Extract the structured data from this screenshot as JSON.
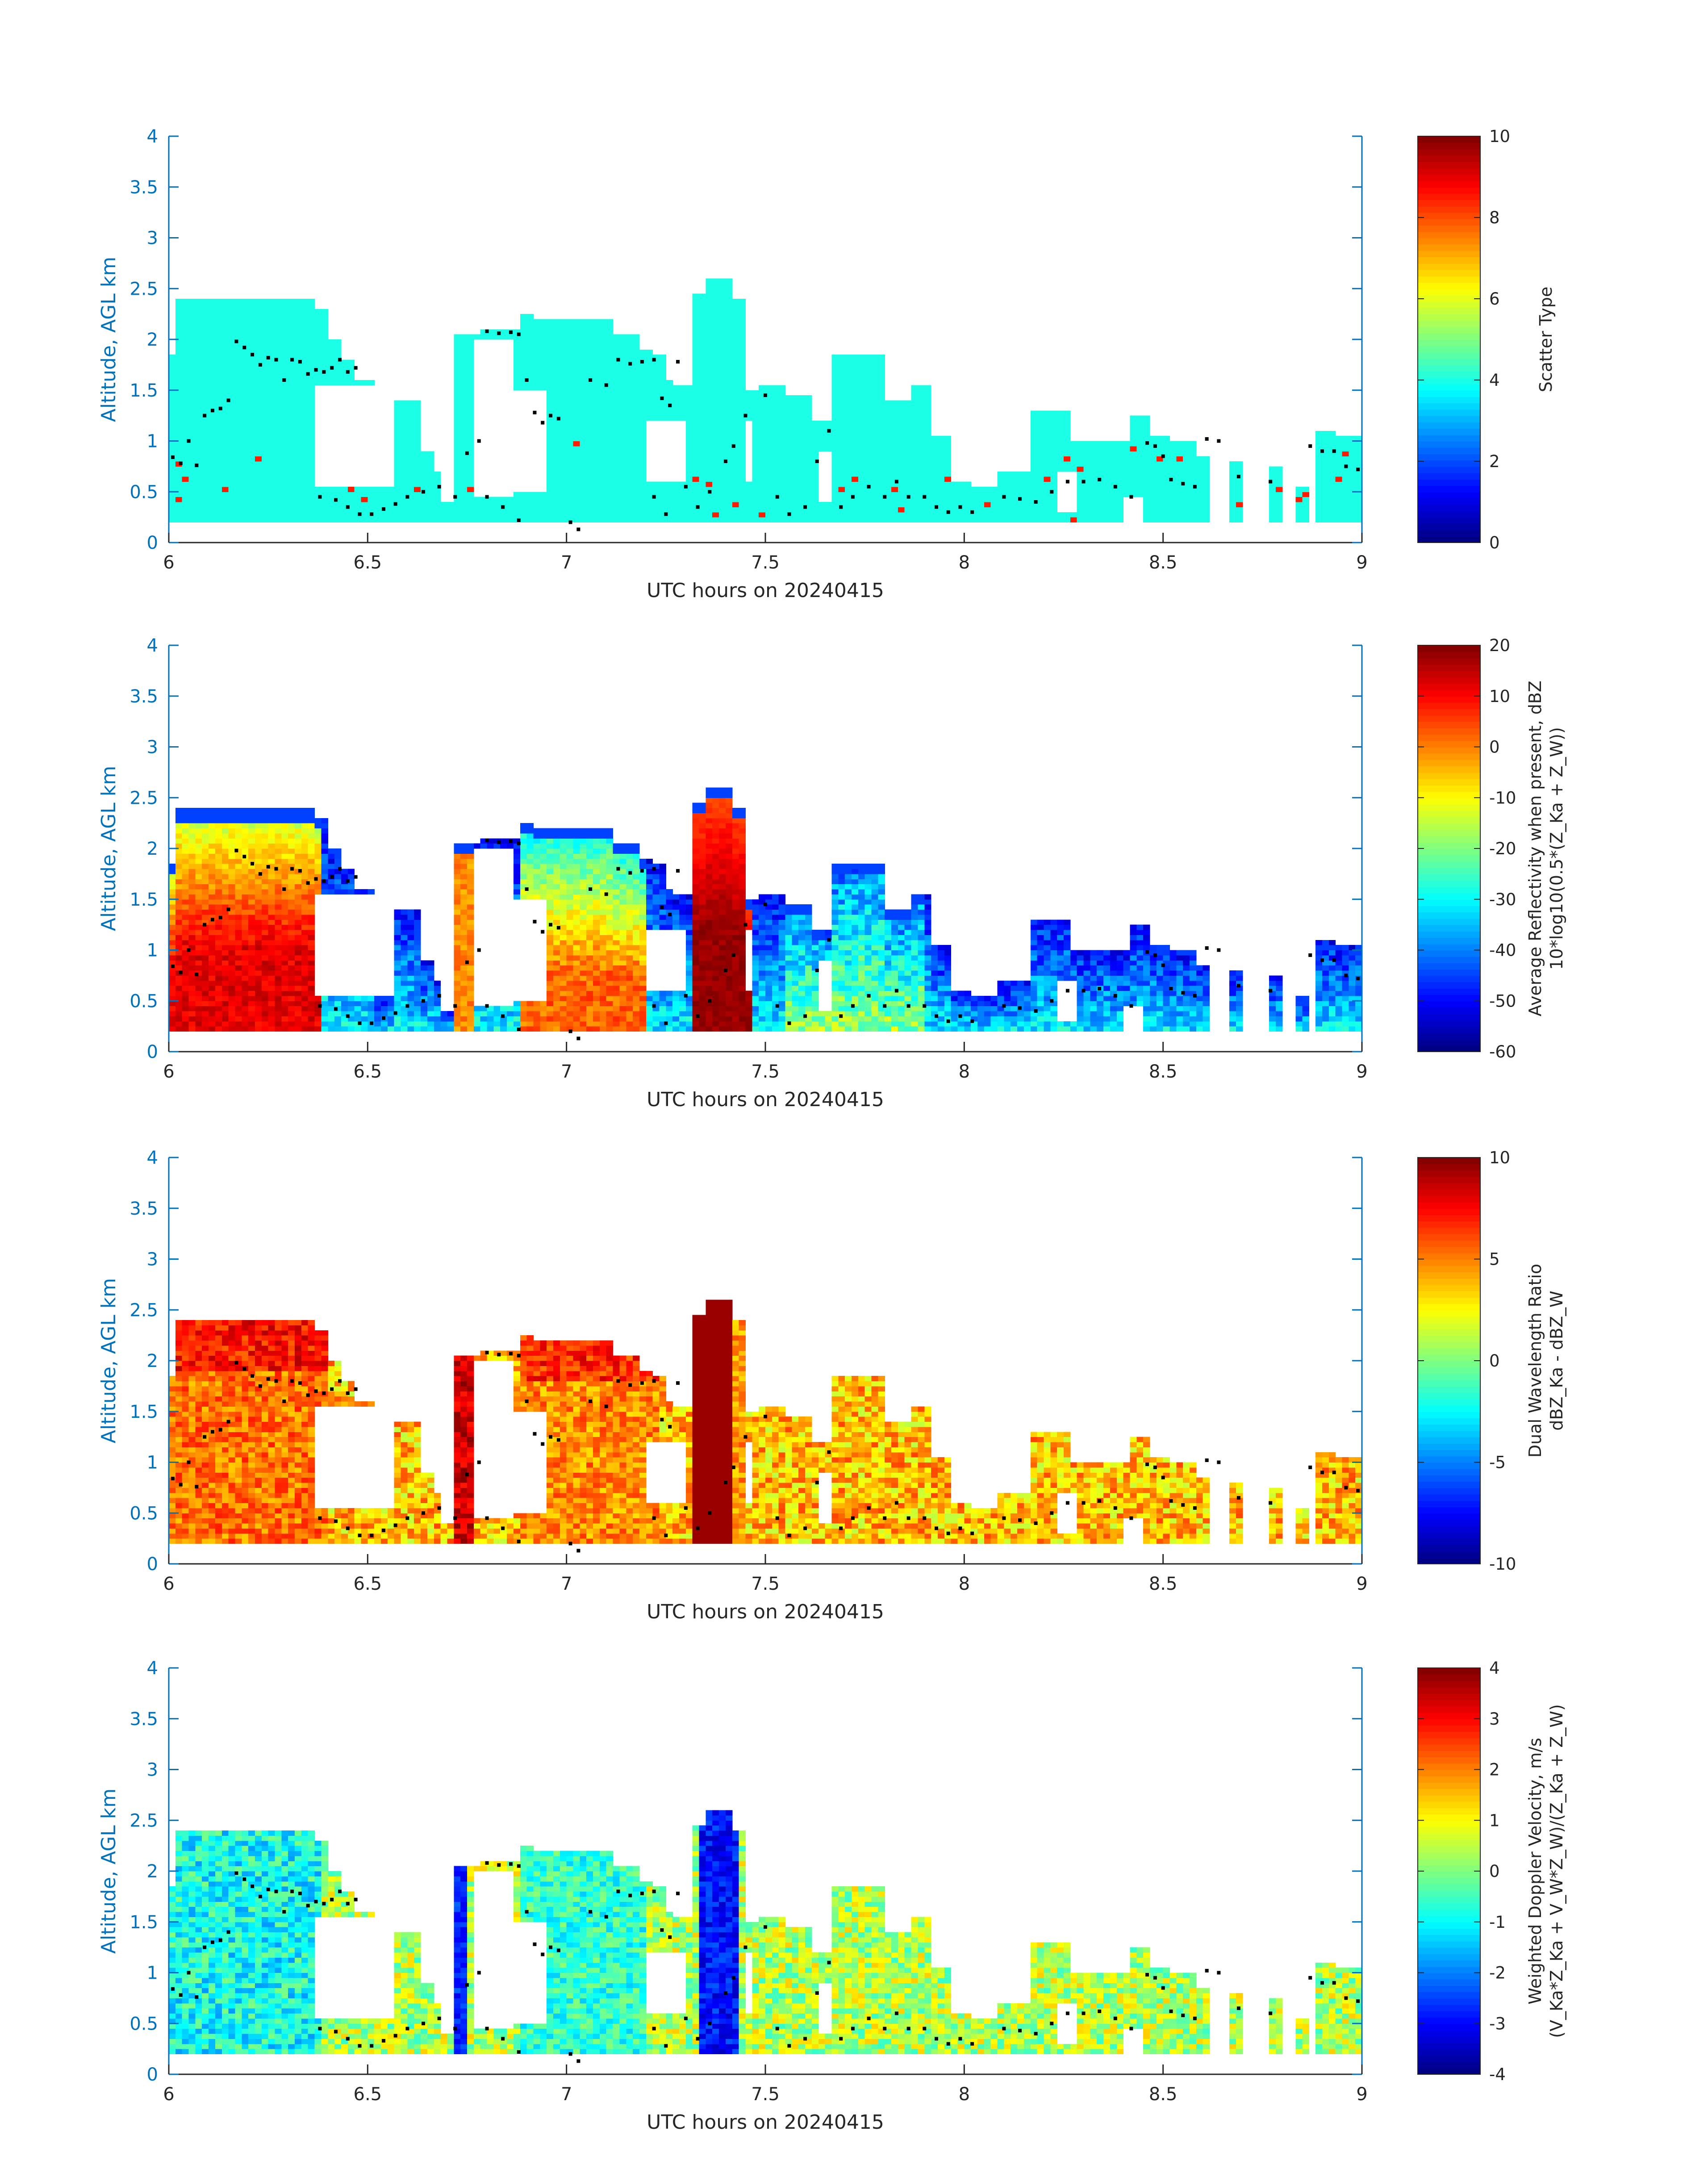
{
  "figure": {
    "x_ticks": [
      "6",
      "6.5",
      "7",
      "7.5",
      "8",
      "8.5",
      "9"
    ],
    "y_ticks": [
      "0",
      "0.5",
      "1",
      "1.5",
      "2",
      "2.5",
      "3",
      "3.5",
      "4"
    ],
    "y_label": "Altitude, AGL km",
    "x_label": "UTC hours on 20240415",
    "colors": {
      "axis_y": "#0072BD",
      "axis_x": "#262626",
      "dots": "#000000"
    },
    "colormap": "jet"
  },
  "chart_data": [
    {
      "type": "heatmap",
      "panel": "scatter-type",
      "xlabel": "UTC hours on 20240415",
      "ylabel": "Altitude, AGL km",
      "xlim": [
        6,
        9
      ],
      "ylim": [
        0,
        4
      ],
      "x_ticks": [
        6,
        6.5,
        7,
        7.5,
        8,
        8.5,
        9
      ],
      "y_ticks": [
        0,
        0.5,
        1,
        1.5,
        2,
        2.5,
        3,
        3.5,
        4
      ],
      "colorbar": {
        "label_lines": [
          "Scatter Type"
        ],
        "ticks": [
          "0",
          "2",
          "4",
          "6",
          "8",
          "10"
        ],
        "range": [
          0,
          10
        ]
      },
      "dominant_value": 4,
      "secondary_value": 8.5,
      "note": "cloud regions mostly value ~4 with scattered columns ~8.5; black dots mark cloud base"
    },
    {
      "type": "heatmap",
      "panel": "reflectivity",
      "xlabel": "UTC hours on 20240415",
      "ylabel": "Altitude, AGL km",
      "xlim": [
        6,
        9
      ],
      "ylim": [
        0,
        4
      ],
      "colorbar": {
        "label_lines": [
          "Average Reflectivity when present, dBZ",
          "10*log10(0.5*(Z_Ka + Z_W))"
        ],
        "ticks": [
          "-60",
          "-50",
          "-40",
          "-30",
          "-20",
          "-10",
          "0",
          "10",
          "20"
        ],
        "range": [
          -60,
          20
        ]
      },
      "peak_value": 15,
      "peak_time": 7.38
    },
    {
      "type": "heatmap",
      "panel": "dual-wavelength-ratio",
      "xlabel": "UTC hours on 20240415",
      "ylabel": "Altitude, AGL km",
      "xlim": [
        6,
        9
      ],
      "ylim": [
        0,
        4
      ],
      "colorbar": {
        "label_lines": [
          "Dual Wavelength Ratio",
          "dBZ_Ka - dBZ_W"
        ],
        "ticks": [
          "-10",
          "-5",
          "0",
          "5",
          "10"
        ],
        "range": [
          -10,
          10
        ]
      },
      "peak_value": 10,
      "peak_time": 7.36
    },
    {
      "type": "heatmap",
      "panel": "doppler-velocity",
      "xlabel": "UTC hours on 20240415",
      "ylabel": "Altitude, AGL km",
      "xlim": [
        6,
        9
      ],
      "ylim": [
        0,
        4
      ],
      "colorbar": {
        "label_lines": [
          "Weighted Doppler Velocity, m/s",
          "(V_Ka*Z_Ka + V_W*Z_W)/(Z_Ka + Z_W)"
        ],
        "ticks": [
          "-4",
          "-3",
          "-2",
          "-1",
          "0",
          "1",
          "2",
          "3",
          "4"
        ],
        "range": [
          -4,
          4
        ]
      },
      "min_value": -3.5,
      "min_time": 7.38
    }
  ],
  "cloud_base_dots": [
    [
      6.01,
      0.84
    ],
    [
      6.03,
      0.78
    ],
    [
      6.05,
      1.0
    ],
    [
      6.07,
      0.76
    ],
    [
      6.09,
      1.25
    ],
    [
      6.11,
      1.3
    ],
    [
      6.13,
      1.32
    ],
    [
      6.15,
      1.4
    ],
    [
      6.17,
      1.98
    ],
    [
      6.19,
      1.92
    ],
    [
      6.21,
      1.85
    ],
    [
      6.23,
      1.75
    ],
    [
      6.25,
      1.82
    ],
    [
      6.27,
      1.8
    ],
    [
      6.29,
      1.6
    ],
    [
      6.31,
      1.8
    ],
    [
      6.33,
      1.78
    ],
    [
      6.35,
      1.66
    ],
    [
      6.37,
      1.7
    ],
    [
      6.39,
      1.68
    ],
    [
      6.41,
      1.72
    ],
    [
      6.43,
      1.8
    ],
    [
      6.45,
      1.68
    ],
    [
      6.47,
      1.72
    ],
    [
      6.38,
      0.45
    ],
    [
      6.42,
      0.42
    ],
    [
      6.45,
      0.35
    ],
    [
      6.48,
      0.28
    ],
    [
      6.51,
      0.28
    ],
    [
      6.54,
      0.33
    ],
    [
      6.57,
      0.38
    ],
    [
      6.6,
      0.45
    ],
    [
      6.64,
      0.5
    ],
    [
      6.68,
      0.55
    ],
    [
      6.72,
      0.45
    ],
    [
      6.75,
      0.88
    ],
    [
      6.78,
      1.0
    ],
    [
      6.8,
      2.08
    ],
    [
      6.83,
      2.06
    ],
    [
      6.86,
      2.07
    ],
    [
      6.88,
      2.05
    ],
    [
      6.9,
      1.6
    ],
    [
      6.92,
      1.28
    ],
    [
      6.94,
      1.18
    ],
    [
      6.96,
      1.25
    ],
    [
      6.98,
      1.22
    ],
    [
      6.8,
      0.45
    ],
    [
      6.84,
      0.35
    ],
    [
      6.88,
      0.22
    ],
    [
      7.01,
      0.2
    ],
    [
      7.03,
      0.13
    ],
    [
      7.06,
      1.6
    ],
    [
      7.1,
      1.55
    ],
    [
      7.13,
      1.8
    ],
    [
      7.16,
      1.76
    ],
    [
      7.19,
      1.78
    ],
    [
      7.22,
      1.8
    ],
    [
      7.24,
      1.42
    ],
    [
      7.26,
      1.35
    ],
    [
      7.28,
      1.78
    ],
    [
      7.22,
      0.45
    ],
    [
      7.25,
      0.28
    ],
    [
      7.3,
      0.55
    ],
    [
      7.33,
      0.35
    ],
    [
      7.36,
      0.5
    ],
    [
      7.4,
      0.8
    ],
    [
      7.42,
      0.95
    ],
    [
      7.45,
      1.25
    ],
    [
      7.5,
      1.45
    ],
    [
      7.53,
      0.45
    ],
    [
      7.56,
      0.28
    ],
    [
      7.6,
      0.35
    ],
    [
      7.63,
      0.8
    ],
    [
      7.66,
      1.1
    ],
    [
      7.69,
      0.35
    ],
    [
      7.72,
      0.45
    ],
    [
      7.76,
      0.55
    ],
    [
      7.8,
      0.45
    ],
    [
      7.83,
      0.6
    ],
    [
      7.86,
      0.45
    ],
    [
      7.9,
      0.45
    ],
    [
      7.93,
      0.35
    ],
    [
      7.96,
      0.3
    ],
    [
      7.99,
      0.35
    ],
    [
      8.02,
      0.3
    ],
    [
      8.1,
      0.45
    ],
    [
      8.14,
      0.43
    ],
    [
      8.18,
      0.4
    ],
    [
      8.22,
      0.5
    ],
    [
      8.26,
      0.6
    ],
    [
      8.3,
      0.6
    ],
    [
      8.34,
      0.62
    ],
    [
      8.38,
      0.55
    ],
    [
      8.42,
      0.45
    ],
    [
      8.46,
      0.98
    ],
    [
      8.48,
      0.95
    ],
    [
      8.5,
      0.85
    ],
    [
      8.52,
      0.62
    ],
    [
      8.55,
      0.58
    ],
    [
      8.58,
      0.55
    ],
    [
      8.61,
      1.02
    ],
    [
      8.64,
      1.0
    ],
    [
      8.69,
      0.65
    ],
    [
      8.77,
      0.6
    ],
    [
      8.87,
      0.95
    ],
    [
      8.9,
      0.9
    ],
    [
      8.93,
      0.9
    ],
    [
      8.96,
      0.75
    ],
    [
      8.99,
      0.72
    ]
  ]
}
